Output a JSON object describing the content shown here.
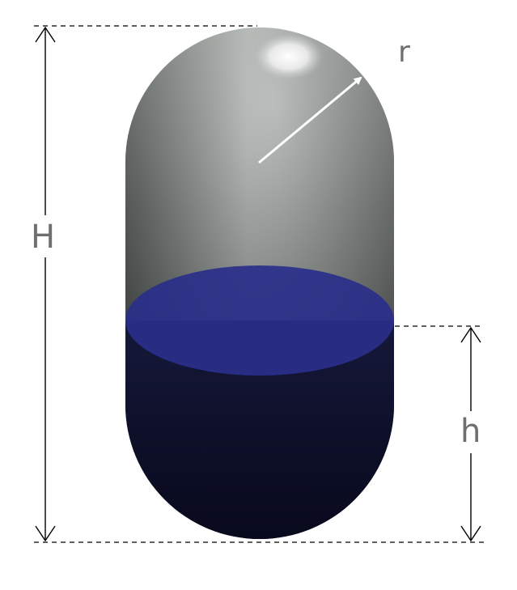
{
  "diagram": {
    "labels": {
      "total_height": "H",
      "liquid_height": "h",
      "radius": "r"
    },
    "colors": {
      "tank_shell_top": "#9aa09c",
      "tank_shell_mid": "#3e4341",
      "liquid_dark": "#0c0e2a",
      "liquid_surface": "#2a2f8a",
      "annotation_text": "#6f6f6f",
      "radius_arrow": "#ffffff"
    }
  }
}
